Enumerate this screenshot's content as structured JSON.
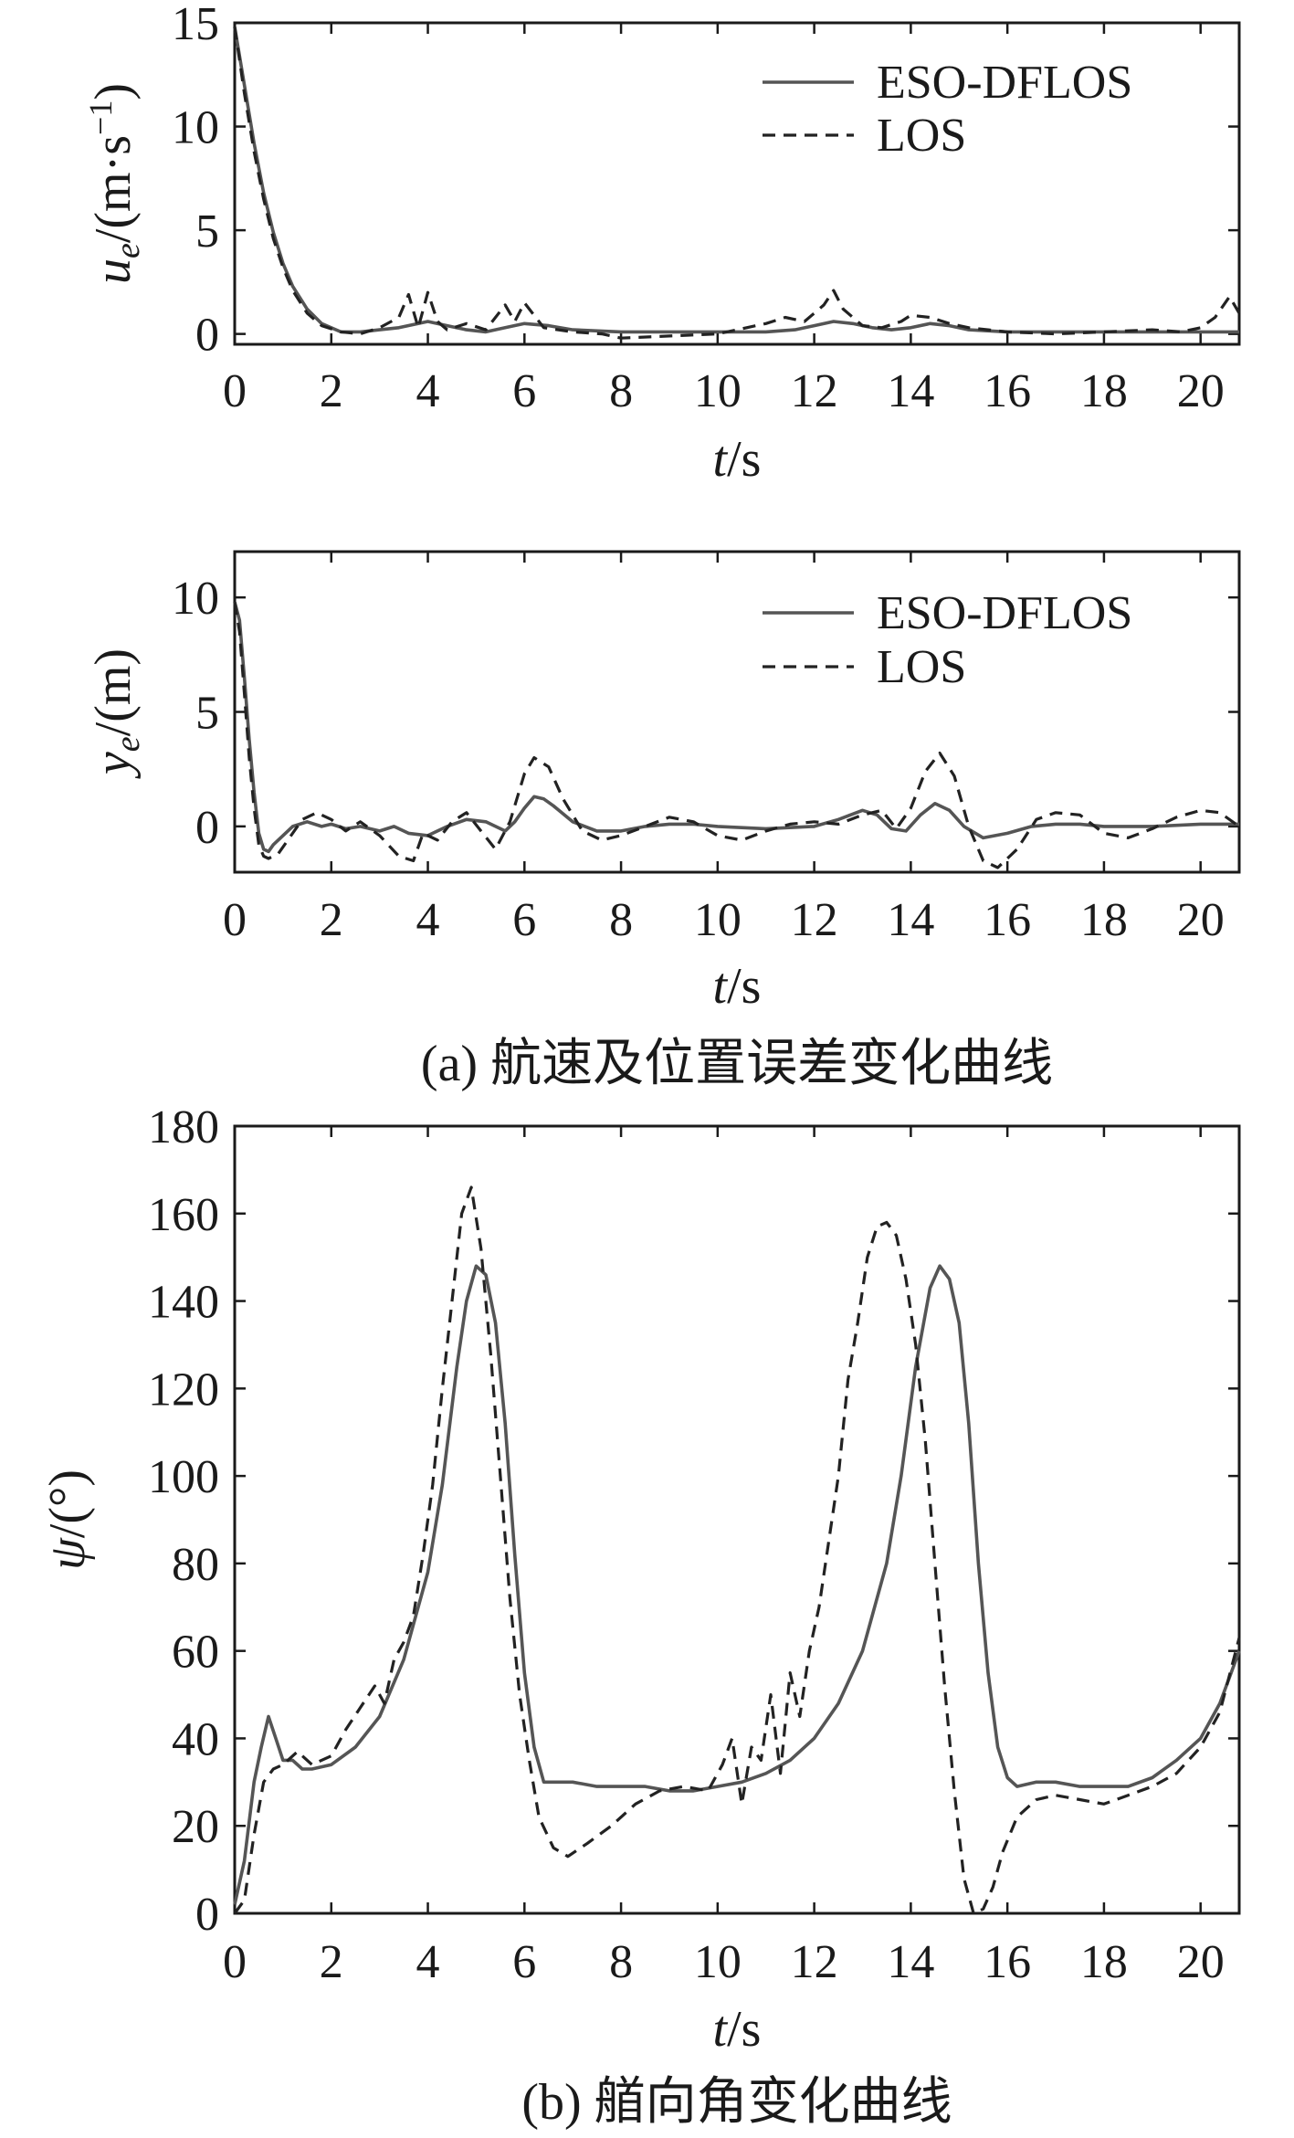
{
  "chart_data": [
    {
      "type": "line",
      "panel": "top",
      "xlabel": "t/s",
      "ylabel": "u_e/(m·s^-1)",
      "xlim": [
        0,
        20.8
      ],
      "ylim": [
        -0.5,
        15
      ],
      "xticks": [
        "0",
        "2",
        "4",
        "6",
        "8",
        "10",
        "12",
        "14",
        "16",
        "18",
        "20"
      ],
      "yticks": [
        "0",
        "5",
        "10",
        "15"
      ],
      "legend": "top-right",
      "series": [
        {
          "name": "ESO-DFLOS",
          "style": "solid",
          "x": [
            0,
            0.2,
            0.4,
            0.6,
            0.8,
            1.0,
            1.2,
            1.5,
            1.8,
            2.2,
            2.6,
            3.0,
            3.4,
            3.8,
            4.0,
            4.4,
            4.8,
            5.2,
            5.6,
            6.0,
            6.5,
            7.0,
            8.0,
            9.0,
            10.0,
            11.0,
            11.6,
            12.0,
            12.4,
            12.8,
            13.2,
            13.6,
            14.0,
            14.4,
            14.8,
            15.2,
            16.0,
            17.0,
            18.0,
            19.0,
            20.0,
            20.8
          ],
          "y": [
            14.8,
            12.0,
            9.2,
            6.8,
            4.9,
            3.4,
            2.3,
            1.2,
            0.5,
            0.1,
            0.1,
            0.2,
            0.3,
            0.5,
            0.6,
            0.4,
            0.2,
            0.1,
            0.3,
            0.5,
            0.4,
            0.2,
            0.1,
            0.1,
            0.1,
            0.1,
            0.2,
            0.4,
            0.6,
            0.5,
            0.3,
            0.2,
            0.3,
            0.5,
            0.4,
            0.2,
            0.1,
            0.1,
            0.1,
            0.1,
            0.1,
            0.1
          ]
        },
        {
          "name": "LOS",
          "style": "dashed",
          "x": [
            0,
            0.2,
            0.4,
            0.6,
            0.8,
            1.0,
            1.2,
            1.5,
            1.8,
            2.2,
            2.6,
            3.0,
            3.4,
            3.6,
            3.8,
            4.0,
            4.2,
            4.4,
            4.8,
            5.2,
            5.6,
            5.8,
            6.0,
            6.4,
            7.0,
            7.6,
            8.0,
            9.0,
            10.0,
            10.6,
            11.0,
            11.4,
            11.8,
            12.2,
            12.4,
            12.6,
            13.0,
            13.4,
            13.8,
            14.0,
            14.4,
            14.8,
            15.2,
            15.6,
            16.0,
            17.0,
            18.0,
            19.0,
            19.6,
            20.0,
            20.3,
            20.6,
            20.8
          ],
          "y": [
            14.8,
            11.6,
            8.8,
            6.5,
            4.6,
            3.2,
            2.1,
            1.0,
            0.4,
            0.1,
            0.0,
            0.3,
            0.8,
            1.9,
            0.3,
            2.0,
            0.6,
            0.2,
            0.5,
            0.2,
            1.4,
            0.6,
            1.5,
            0.3,
            0.1,
            0.0,
            -0.2,
            -0.1,
            0.0,
            0.3,
            0.5,
            0.8,
            0.6,
            1.4,
            2.1,
            1.2,
            0.4,
            0.3,
            0.6,
            0.9,
            0.8,
            0.5,
            0.3,
            0.2,
            0.1,
            0.0,
            0.1,
            0.2,
            0.1,
            0.3,
            0.8,
            1.8,
            1.0
          ]
        }
      ]
    },
    {
      "type": "line",
      "panel": "middle",
      "xlabel": "t/s",
      "ylabel": "y_e/(m)",
      "xlim": [
        0,
        20.8
      ],
      "ylim": [
        -2,
        12
      ],
      "xticks": [
        "0",
        "2",
        "4",
        "6",
        "8",
        "10",
        "12",
        "14",
        "16",
        "18",
        "20"
      ],
      "yticks": [
        "0",
        "5",
        "10"
      ],
      "legend": "top-right",
      "caption": "(a) 航速及位置误差变化曲线",
      "series": [
        {
          "name": "ESO-DFLOS",
          "style": "solid",
          "x": [
            0,
            0.1,
            0.2,
            0.3,
            0.4,
            0.5,
            0.6,
            0.7,
            0.8,
            1.0,
            1.2,
            1.5,
            1.8,
            2.0,
            2.3,
            2.6,
            3.0,
            3.3,
            3.6,
            4.0,
            4.4,
            4.8,
            5.2,
            5.6,
            5.8,
            6.0,
            6.2,
            6.4,
            6.6,
            7.0,
            7.5,
            8.0,
            8.5,
            9.0,
            9.5,
            10.0,
            11.0,
            12.0,
            12.5,
            13.0,
            13.3,
            13.6,
            13.9,
            14.2,
            14.5,
            14.8,
            15.1,
            15.5,
            16.0,
            16.5,
            17.0,
            17.5,
            18.0,
            19.0,
            20.0,
            20.8
          ],
          "y": [
            9.8,
            9.0,
            6.5,
            3.8,
            1.5,
            -0.3,
            -1.0,
            -1.1,
            -0.8,
            -0.4,
            0.0,
            0.2,
            0.0,
            0.1,
            -0.1,
            0.0,
            -0.2,
            0.0,
            -0.3,
            -0.4,
            0.0,
            0.3,
            0.2,
            -0.2,
            0.2,
            0.8,
            1.3,
            1.2,
            0.9,
            0.2,
            -0.2,
            -0.2,
            0.0,
            0.1,
            0.1,
            0.0,
            -0.1,
            0.0,
            0.3,
            0.7,
            0.5,
            -0.1,
            -0.2,
            0.5,
            1.0,
            0.7,
            0.0,
            -0.5,
            -0.3,
            0.0,
            0.1,
            0.1,
            0.0,
            0.0,
            0.1,
            0.1
          ]
        },
        {
          "name": "LOS",
          "style": "dashed",
          "x": [
            0,
            0.1,
            0.2,
            0.3,
            0.4,
            0.5,
            0.6,
            0.7,
            0.9,
            1.1,
            1.4,
            1.7,
            2.0,
            2.3,
            2.6,
            3.0,
            3.4,
            3.7,
            3.9,
            4.2,
            4.5,
            4.8,
            5.1,
            5.4,
            5.7,
            6.0,
            6.2,
            6.5,
            6.8,
            7.2,
            7.6,
            8.0,
            8.5,
            9.0,
            9.5,
            10.0,
            10.5,
            11.0,
            11.5,
            12.0,
            12.5,
            13.0,
            13.4,
            13.7,
            14.0,
            14.3,
            14.6,
            14.9,
            15.2,
            15.5,
            15.8,
            16.2,
            16.6,
            17.0,
            17.5,
            18.0,
            18.5,
            19.0,
            19.5,
            20.0,
            20.4,
            20.8
          ],
          "y": [
            9.8,
            8.5,
            5.8,
            3.0,
            0.8,
            -0.8,
            -1.3,
            -1.4,
            -1.2,
            -0.6,
            0.3,
            0.6,
            0.3,
            -0.2,
            0.2,
            -0.4,
            -1.3,
            -1.5,
            -0.3,
            -0.6,
            0.2,
            0.6,
            -0.2,
            -1.0,
            0.2,
            2.3,
            3.0,
            2.6,
            1.2,
            -0.2,
            -0.6,
            -0.4,
            0.0,
            0.4,
            0.2,
            -0.4,
            -0.6,
            -0.2,
            0.1,
            0.2,
            0.1,
            0.5,
            0.7,
            -0.1,
            0.8,
            2.4,
            3.2,
            2.2,
            0.0,
            -1.5,
            -1.8,
            -1.0,
            0.3,
            0.6,
            0.5,
            -0.3,
            -0.5,
            -0.1,
            0.4,
            0.7,
            0.6,
            0.0
          ]
        }
      ]
    },
    {
      "type": "line",
      "panel": "bottom",
      "xlabel": "t/s",
      "ylabel": "ψ/(°)",
      "xlim": [
        0,
        20.8
      ],
      "ylim": [
        0,
        180
      ],
      "xticks": [
        "0",
        "2",
        "4",
        "6",
        "8",
        "10",
        "12",
        "14",
        "16",
        "18",
        "20"
      ],
      "yticks": [
        "0",
        "20",
        "40",
        "60",
        "80",
        "100",
        "120",
        "140",
        "160",
        "180"
      ],
      "caption": "(b) 艏向角变化曲线",
      "series": [
        {
          "name": "ESO-DFLOS",
          "style": "solid",
          "x": [
            0,
            0.2,
            0.4,
            0.55,
            0.7,
            0.85,
            1.0,
            1.2,
            1.4,
            1.6,
            2.0,
            2.5,
            3.0,
            3.5,
            4.0,
            4.3,
            4.6,
            4.8,
            5.0,
            5.2,
            5.4,
            5.6,
            5.8,
            6.0,
            6.2,
            6.4,
            7.0,
            7.5,
            8.0,
            8.5,
            9.0,
            9.5,
            10.0,
            10.5,
            11.0,
            11.5,
            12.0,
            12.5,
            13.0,
            13.5,
            13.8,
            14.1,
            14.4,
            14.6,
            14.8,
            15.0,
            15.2,
            15.4,
            15.6,
            15.8,
            16.0,
            16.2,
            16.6,
            17.0,
            17.5,
            18.0,
            18.5,
            19.0,
            19.5,
            20.0,
            20.4,
            20.8
          ],
          "y": [
            2,
            12,
            30,
            38,
            45,
            40,
            35,
            35,
            33,
            33,
            34,
            38,
            45,
            58,
            78,
            98,
            125,
            140,
            148,
            146,
            135,
            112,
            82,
            55,
            38,
            30,
            30,
            29,
            29,
            29,
            28,
            28,
            29,
            30,
            32,
            35,
            40,
            48,
            60,
            80,
            100,
            125,
            143,
            148,
            145,
            135,
            112,
            80,
            55,
            38,
            31,
            29,
            30,
            30,
            29,
            29,
            29,
            31,
            35,
            40,
            48,
            60
          ]
        },
        {
          "name": "LOS",
          "style": "dashed",
          "x": [
            0,
            0.2,
            0.4,
            0.6,
            0.8,
            1.0,
            1.3,
            1.6,
            2.0,
            2.3,
            2.6,
            2.9,
            3.1,
            3.3,
            3.5,
            3.7,
            3.9,
            4.1,
            4.3,
            4.5,
            4.7,
            4.9,
            5.1,
            5.3,
            5.5,
            5.7,
            5.9,
            6.1,
            6.3,
            6.6,
            6.9,
            7.3,
            7.8,
            8.3,
            8.8,
            9.3,
            9.8,
            10.1,
            10.3,
            10.5,
            10.7,
            10.9,
            11.1,
            11.3,
            11.5,
            11.7,
            11.9,
            12.1,
            12.3,
            12.5,
            12.7,
            12.9,
            13.1,
            13.3,
            13.5,
            13.7,
            13.9,
            14.1,
            14.3,
            14.5,
            14.7,
            14.9,
            15.1,
            15.3,
            15.5,
            15.7,
            15.9,
            16.2,
            16.6,
            17.0,
            17.5,
            18.0,
            18.5,
            19.0,
            19.5,
            20.0,
            20.4,
            20.8
          ],
          "y": [
            0,
            3,
            18,
            30,
            33,
            34,
            37,
            34,
            36,
            42,
            47,
            52,
            48,
            58,
            62,
            68,
            82,
            98,
            120,
            140,
            160,
            166,
            152,
            128,
            100,
            72,
            50,
            35,
            22,
            15,
            13,
            16,
            20,
            25,
            28,
            29,
            28,
            34,
            40,
            25,
            38,
            35,
            50,
            32,
            55,
            45,
            60,
            70,
            85,
            100,
            122,
            135,
            150,
            157,
            158,
            155,
            145,
            130,
            108,
            80,
            52,
            28,
            8,
            0,
            1,
            6,
            14,
            22,
            26,
            27,
            26,
            25,
            27,
            29,
            32,
            38,
            46,
            63
          ]
        }
      ]
    }
  ]
}
